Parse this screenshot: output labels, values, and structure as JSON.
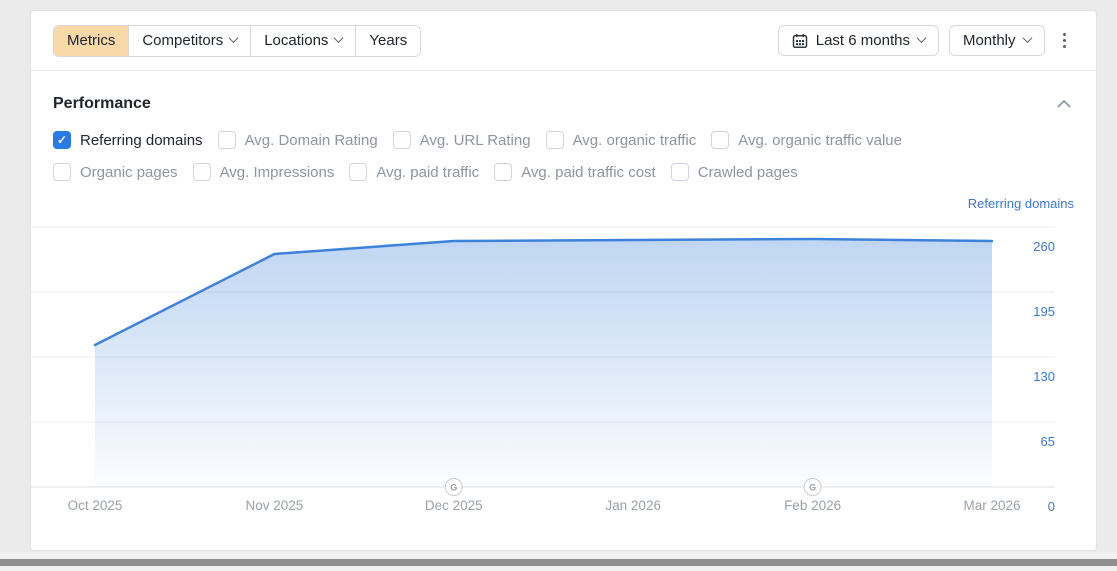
{
  "toolbar": {
    "tabs": [
      {
        "label": "Metrics",
        "active": true,
        "has_dropdown": false
      },
      {
        "label": "Competitors",
        "active": false,
        "has_dropdown": true
      },
      {
        "label": "Locations",
        "active": false,
        "has_dropdown": true
      },
      {
        "label": "Years",
        "active": false,
        "has_dropdown": false
      }
    ],
    "date_range_label": "Last 6 months",
    "granularity_label": "Monthly"
  },
  "performance": {
    "title": "Performance",
    "metrics_row1": [
      {
        "label": "Referring domains",
        "checked": true
      },
      {
        "label": "Avg. Domain Rating",
        "checked": false
      },
      {
        "label": "Avg. URL Rating",
        "checked": false
      },
      {
        "label": "Avg. organic traffic",
        "checked": false
      },
      {
        "label": "Avg. organic traffic value",
        "checked": false
      }
    ],
    "metrics_row2": [
      {
        "label": "Organic pages",
        "checked": false
      },
      {
        "label": "Avg. Impressions",
        "checked": false
      },
      {
        "label": "Avg. paid traffic",
        "checked": false
      },
      {
        "label": "Avg. paid traffic cost",
        "checked": false
      },
      {
        "label": "Crawled pages",
        "checked": false
      }
    ]
  },
  "chart_data": {
    "type": "area",
    "title": "",
    "legend": "Referring domains",
    "legend_position": "top-right",
    "categories": [
      "Oct 2025",
      "Nov 2025",
      "Dec 2025",
      "Jan 2026",
      "Feb 2026",
      "Mar 2026"
    ],
    "values": [
      142,
      233,
      246,
      247,
      248,
      246
    ],
    "y_ticks": [
      260,
      195,
      130,
      65,
      0
    ],
    "ylim": [
      0,
      280
    ],
    "grid": true,
    "xlabel": "",
    "ylabel": "",
    "annotations": [
      {
        "label": "G",
        "x": "Dec 2025"
      },
      {
        "label": "G",
        "x": "Feb 2026"
      }
    ],
    "line_color": "#3d82d9",
    "axis_label_color": "#3b78d4",
    "x_label_color": "#9aa1a9",
    "grid_color": "#ededed",
    "marker_text_color": "#9aa0a6"
  }
}
